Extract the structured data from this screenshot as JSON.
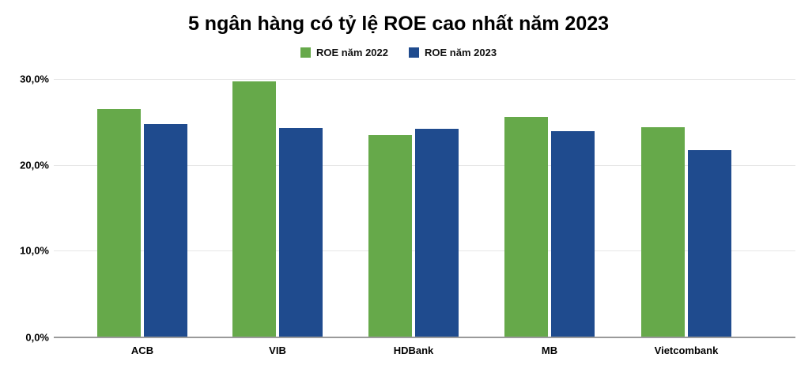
{
  "title": "5 ngân hàng có tỷ lệ ROE cao nhất năm 2023",
  "colors": {
    "series_2022": "#66a94a",
    "series_2023": "#1f4b8e",
    "gridline": "#e6e6e6",
    "baseline": "#9a9a9a",
    "text": "#000000"
  },
  "chart_data": {
    "type": "bar",
    "title": "5 ngân hàng có tỷ lệ ROE cao nhất năm 2023",
    "categories": [
      "ACB",
      "VIB",
      "HDBank",
      "MB",
      "Vietcombank"
    ],
    "series": [
      {
        "name": "ROE năm 2022",
        "color": "#66a94a",
        "values": [
          26.5,
          29.7,
          23.5,
          25.6,
          24.4
        ]
      },
      {
        "name": "ROE năm 2023",
        "color": "#1f4b8e",
        "values": [
          24.8,
          24.3,
          24.2,
          23.9,
          21.7
        ]
      }
    ],
    "xlabel": "",
    "ylabel": "",
    "ylim": [
      0,
      30
    ],
    "yticks": [
      {
        "value": 0,
        "label": "0,0%"
      },
      {
        "value": 10,
        "label": "10,0%"
      },
      {
        "value": 20,
        "label": "20,0%"
      },
      {
        "value": 30,
        "label": "30,0%"
      }
    ],
    "grid": true,
    "legend_position": "top-center"
  }
}
